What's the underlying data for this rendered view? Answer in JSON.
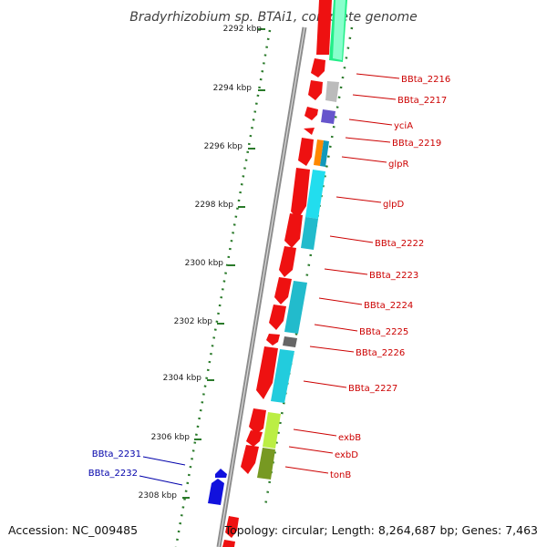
{
  "title": "Bradyrhizobium sp. BTAi1, complete genome",
  "accession": "Accession: NC_009485",
  "summary": "Topology: circular; Length: 8,264,687 bp; Genes: 7,463",
  "kbp_ticks": [
    "2292 kbp",
    "2294 kbp",
    "2296 kbp",
    "2298 kbp",
    "2300 kbp",
    "2302 kbp",
    "2304 kbp",
    "2306 kbp",
    "2308 kbp"
  ],
  "genes_right": [
    "BBta_2216",
    "BBta_2217",
    "yciA",
    "BBta_2219",
    "glpR",
    "glpD",
    "BBta_2222",
    "BBta_2223",
    "BBta_2224",
    "BBta_2225",
    "BBta_2226",
    "BBta_2227",
    "exbB",
    "exbD",
    "tonB"
  ],
  "genes_left": [
    "BBta_2231",
    "BBta_2232"
  ],
  "colors": {
    "backbone": "#8c8c8c",
    "cds": "#ee1111",
    "left_cds": "#1111dd",
    "ticks": "#2a7a2a",
    "label_red": "#cc0000",
    "label_blue": "#0000aa"
  }
}
